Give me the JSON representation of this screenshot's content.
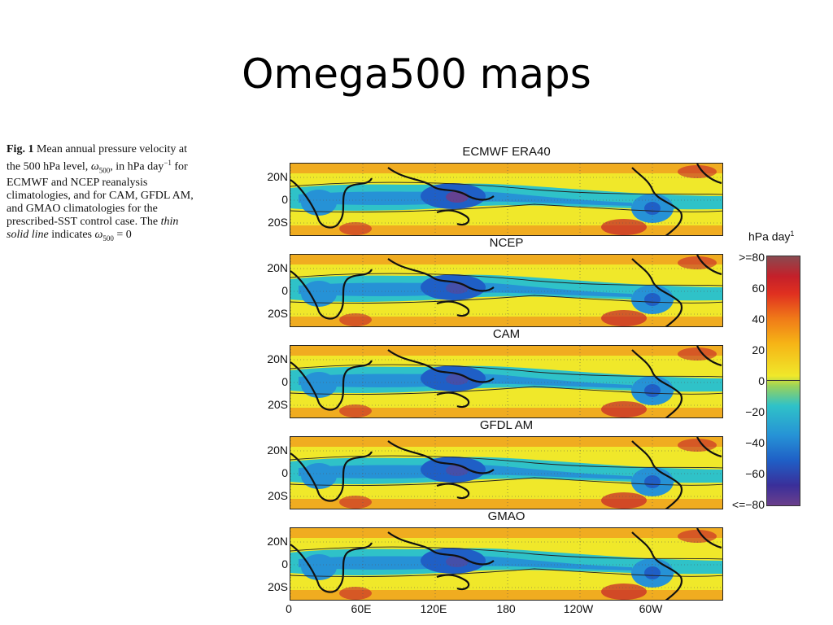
{
  "slide": {
    "title": "Omega500 maps"
  },
  "caption": {
    "fig_label": "Fig. 1",
    "text_1": "Mean annual pressure velocity at the 500 hPa level,",
    "omega_symbol": "ω",
    "omega_sub": "500",
    "text_2": ", in hPa day",
    "exp": "−1",
    "text_3": " for ECMWF and NCEP reanalysis climatologies, and for CAM, GFDL AM, and GMAO climatologies for the prescribed-SST control case. The ",
    "italic_text": "thin solid line",
    "text_4": " indicates ",
    "text_5": " = 0"
  },
  "panels": [
    {
      "title": "ECMWF ERA40"
    },
    {
      "title": "NCEP"
    },
    {
      "title": "CAM"
    },
    {
      "title": "GFDL AM"
    },
    {
      "title": "GMAO"
    }
  ],
  "lat_labels": [
    "20N",
    "0",
    "20S"
  ],
  "lon_labels": [
    "0",
    "60E",
    "120E",
    "180",
    "120W",
    "60W"
  ],
  "colorbar": {
    "title": "hPa day",
    "title_sup": "1",
    "labels": [
      ">=80",
      "60",
      "40",
      "20",
      "0",
      "−20",
      "−40",
      "−60",
      "<=−80"
    ],
    "colors": {
      "max": "#8a4a50",
      "red": "#c4202a",
      "orange": "#f07a18",
      "yellow": "#f0e82a",
      "cyan": "#2fc2c8",
      "blue": "#2692d6",
      "deep_blue": "#1f5fc6",
      "min": "#6b3f8c"
    }
  }
}
